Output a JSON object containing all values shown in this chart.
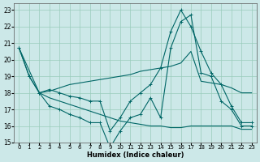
{
  "xlabel": "Humidex (Indice chaleur)",
  "background_color": "#cce8e8",
  "grid_color": "#99ccbb",
  "line_color": "#006666",
  "xlim": [
    -0.5,
    23.5
  ],
  "ylim": [
    15,
    23.4
  ],
  "yticks": [
    15,
    16,
    17,
    18,
    19,
    20,
    21,
    22,
    23
  ],
  "xticks": [
    0,
    1,
    2,
    3,
    4,
    5,
    6,
    7,
    8,
    9,
    10,
    11,
    12,
    13,
    14,
    15,
    16,
    17,
    18,
    19,
    20,
    21,
    22,
    23
  ],
  "s1_x": [
    0,
    1,
    2,
    3,
    4,
    5,
    6,
    7,
    8,
    9,
    10,
    11,
    12,
    13,
    14,
    15,
    16,
    17,
    18,
    19,
    20,
    21,
    22,
    23
  ],
  "s1_y": [
    20.7,
    19.0,
    18.0,
    17.2,
    17.0,
    16.7,
    16.5,
    16.2,
    16.2,
    14.7,
    15.7,
    16.5,
    16.7,
    17.7,
    16.5,
    20.7,
    22.3,
    22.7,
    19.2,
    19.0,
    17.5,
    17.0,
    16.0,
    16.0
  ],
  "s2_x": [
    0,
    1,
    2,
    3,
    4,
    5,
    6,
    7,
    8,
    9,
    10,
    11,
    12,
    13,
    14,
    15,
    16,
    17,
    18,
    19,
    20,
    21,
    22,
    23
  ],
  "s2_y": [
    20.7,
    19.0,
    18.0,
    18.2,
    18.0,
    17.8,
    17.7,
    17.5,
    17.5,
    15.7,
    16.5,
    17.5,
    18.0,
    18.5,
    19.5,
    21.7,
    23.0,
    22.0,
    20.5,
    19.2,
    18.5,
    17.2,
    16.2,
    16.2
  ],
  "s3_x": [
    0,
    2,
    3,
    4,
    5,
    6,
    7,
    8,
    9,
    10,
    11,
    12,
    13,
    14,
    15,
    16,
    17,
    18,
    19,
    20,
    21,
    22,
    23
  ],
  "s3_y": [
    20.7,
    18.0,
    18.1,
    18.3,
    18.5,
    18.6,
    18.7,
    18.8,
    18.9,
    19.0,
    19.1,
    19.3,
    19.4,
    19.5,
    19.6,
    19.8,
    20.5,
    18.7,
    18.6,
    18.5,
    18.3,
    18.0,
    18.0
  ],
  "s4_x": [
    2,
    3,
    4,
    5,
    6,
    7,
    8,
    9,
    10,
    11,
    12,
    13,
    14,
    15,
    16,
    17,
    18,
    19,
    20,
    21,
    22,
    23
  ],
  "s4_y": [
    18.0,
    17.7,
    17.5,
    17.3,
    17.1,
    16.9,
    16.7,
    16.5,
    16.3,
    16.2,
    16.1,
    16.0,
    16.0,
    15.9,
    15.9,
    16.0,
    16.0,
    16.0,
    16.0,
    16.0,
    15.8,
    15.8
  ]
}
